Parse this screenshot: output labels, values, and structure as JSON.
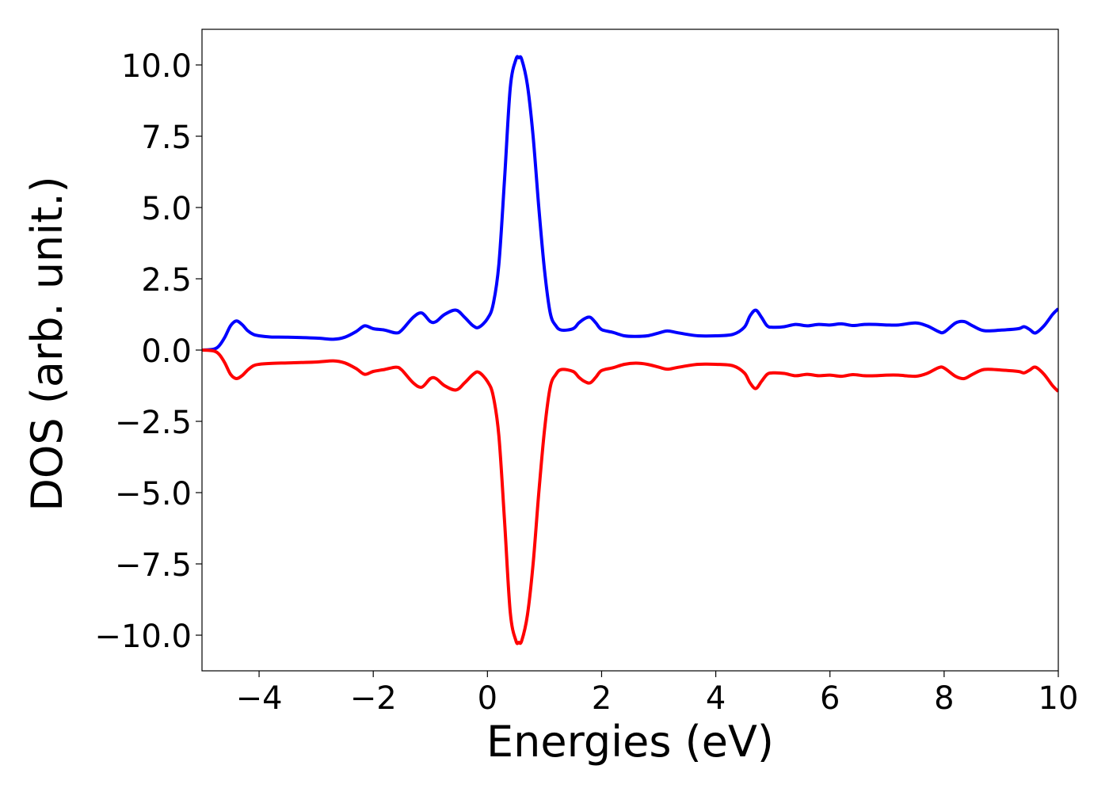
{
  "chart_data": {
    "type": "line",
    "title": "",
    "xlabel": "Energies (eV)",
    "ylabel": "DOS (arb. unit.)",
    "xlim": [
      -5,
      10
    ],
    "ylim": [
      -11.25,
      11.25
    ],
    "grid": false,
    "legend": "none",
    "xticks": [
      -4,
      -2,
      0,
      2,
      4,
      6,
      8,
      10
    ],
    "xtick_labels": [
      "−4",
      "−2",
      "0",
      "2",
      "4",
      "6",
      "8",
      "10"
    ],
    "yticks": [
      10.0,
      7.5,
      5.0,
      2.5,
      0.0,
      -2.5,
      -5.0,
      -7.5,
      -10.0
    ],
    "ytick_labels": [
      "10.0",
      "7.5",
      "5.0",
      "2.5",
      "0.0",
      "−2.5",
      "−5.0",
      "−7.5",
      "−10.0"
    ],
    "series": [
      {
        "color": "#0000ff",
        "x": [
          -5.0,
          -4.8,
          -4.7,
          -4.6,
          -4.5,
          -4.4,
          -4.3,
          -4.2,
          -4.1,
          -4.0,
          -3.8,
          -3.5,
          -3.0,
          -2.7,
          -2.5,
          -2.3,
          -2.15,
          -2.0,
          -1.8,
          -1.6,
          -1.5,
          -1.3,
          -1.15,
          -1.0,
          -0.9,
          -0.75,
          -0.55,
          -0.4,
          -0.25,
          -0.15,
          0.0,
          0.1,
          0.2,
          0.3,
          0.4,
          0.5,
          0.55,
          0.6,
          0.7,
          0.8,
          0.9,
          1.0,
          1.1,
          1.2,
          1.3,
          1.5,
          1.6,
          1.7,
          1.8,
          1.9,
          2.0,
          2.2,
          2.4,
          2.6,
          2.8,
          3.0,
          3.15,
          3.3,
          3.5,
          3.7,
          4.0,
          4.3,
          4.5,
          4.6,
          4.7,
          4.8,
          4.9,
          5.0,
          5.2,
          5.4,
          5.6,
          5.8,
          6.0,
          6.2,
          6.4,
          6.6,
          6.8,
          7.0,
          7.2,
          7.5,
          7.7,
          7.9,
          8.0,
          8.2,
          8.35,
          8.5,
          8.7,
          9.0,
          9.3,
          9.4,
          9.5,
          9.6,
          9.75,
          9.9,
          10.0
        ],
        "y": [
          0.0,
          0.03,
          0.15,
          0.45,
          0.85,
          1.02,
          0.9,
          0.68,
          0.55,
          0.5,
          0.46,
          0.45,
          0.42,
          0.38,
          0.45,
          0.65,
          0.85,
          0.75,
          0.7,
          0.6,
          0.7,
          1.15,
          1.3,
          1.0,
          1.0,
          1.25,
          1.4,
          1.15,
          0.85,
          0.8,
          1.1,
          1.6,
          3.0,
          6.0,
          9.2,
          10.2,
          10.25,
          10.2,
          9.3,
          7.5,
          5.0,
          2.8,
          1.3,
          0.85,
          0.7,
          0.75,
          0.95,
          1.1,
          1.15,
          0.95,
          0.72,
          0.62,
          0.5,
          0.48,
          0.5,
          0.6,
          0.67,
          0.62,
          0.55,
          0.5,
          0.5,
          0.55,
          0.8,
          1.2,
          1.4,
          1.15,
          0.85,
          0.8,
          0.82,
          0.9,
          0.85,
          0.9,
          0.88,
          0.92,
          0.86,
          0.9,
          0.9,
          0.88,
          0.88,
          0.95,
          0.85,
          0.65,
          0.63,
          0.95,
          1.0,
          0.85,
          0.68,
          0.7,
          0.75,
          0.82,
          0.72,
          0.6,
          0.85,
          1.25,
          1.45
        ]
      },
      {
        "color": "#ff0000",
        "x": [
          -5.0,
          -4.8,
          -4.7,
          -4.6,
          -4.5,
          -4.4,
          -4.3,
          -4.2,
          -4.1,
          -4.0,
          -3.8,
          -3.5,
          -3.0,
          -2.7,
          -2.5,
          -2.3,
          -2.15,
          -2.0,
          -1.8,
          -1.6,
          -1.5,
          -1.3,
          -1.15,
          -1.0,
          -0.9,
          -0.75,
          -0.55,
          -0.4,
          -0.25,
          -0.15,
          0.0,
          0.1,
          0.2,
          0.3,
          0.4,
          0.5,
          0.55,
          0.6,
          0.7,
          0.8,
          0.9,
          1.0,
          1.1,
          1.2,
          1.3,
          1.5,
          1.6,
          1.7,
          1.8,
          1.9,
          2.0,
          2.2,
          2.4,
          2.6,
          2.8,
          3.0,
          3.15,
          3.3,
          3.5,
          3.7,
          4.0,
          4.3,
          4.5,
          4.6,
          4.7,
          4.8,
          4.9,
          5.0,
          5.2,
          5.4,
          5.6,
          5.8,
          6.0,
          6.2,
          6.4,
          6.6,
          6.8,
          7.0,
          7.2,
          7.5,
          7.7,
          7.9,
          8.0,
          8.2,
          8.35,
          8.5,
          8.7,
          9.0,
          9.3,
          9.4,
          9.5,
          9.6,
          9.75,
          9.9,
          10.0
        ],
        "y": [
          0.0,
          -0.03,
          -0.15,
          -0.45,
          -0.85,
          -1.0,
          -0.9,
          -0.7,
          -0.55,
          -0.5,
          -0.47,
          -0.45,
          -0.42,
          -0.38,
          -0.45,
          -0.65,
          -0.85,
          -0.75,
          -0.68,
          -0.6,
          -0.7,
          -1.15,
          -1.3,
          -1.0,
          -1.0,
          -1.25,
          -1.4,
          -1.15,
          -0.85,
          -0.78,
          -1.1,
          -1.6,
          -3.0,
          -6.0,
          -9.2,
          -10.2,
          -10.25,
          -10.2,
          -9.3,
          -7.5,
          -5.0,
          -2.8,
          -1.3,
          -0.85,
          -0.68,
          -0.75,
          -0.95,
          -1.1,
          -1.15,
          -0.95,
          -0.72,
          -0.62,
          -0.5,
          -0.46,
          -0.5,
          -0.6,
          -0.67,
          -0.62,
          -0.55,
          -0.5,
          -0.5,
          -0.55,
          -0.8,
          -1.15,
          -1.35,
          -1.1,
          -0.85,
          -0.8,
          -0.82,
          -0.9,
          -0.85,
          -0.9,
          -0.88,
          -0.92,
          -0.86,
          -0.9,
          -0.9,
          -0.88,
          -0.88,
          -0.92,
          -0.82,
          -0.62,
          -0.63,
          -0.92,
          -1.0,
          -0.85,
          -0.68,
          -0.7,
          -0.75,
          -0.8,
          -0.7,
          -0.6,
          -0.85,
          -1.25,
          -1.45
        ]
      }
    ]
  }
}
